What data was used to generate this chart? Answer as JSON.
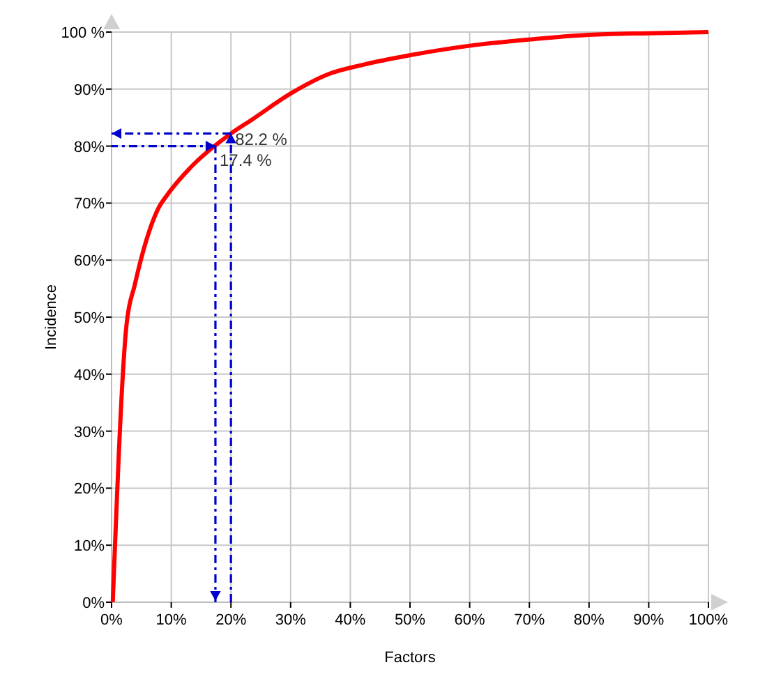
{
  "chart_data": {
    "type": "line",
    "xlabel": "Factors",
    "ylabel": "Incidence",
    "grid": true,
    "x": [
      0.2,
      2.5,
      3.9,
      5.2,
      7.8,
      9.3,
      13.1,
      20,
      23.6,
      30.3,
      36.3,
      42.3,
      49.8,
      60,
      70.1,
      79.9,
      90,
      100
    ],
    "series": [
      {
        "color": "#ff0000",
        "values": [
          0,
          48.6,
          55.7,
          61.2,
          69,
          71.4,
          76.1,
          82.2,
          84.7,
          89.4,
          92.6,
          94.3,
          95.9,
          97.6,
          98.7,
          99.5,
          99.8,
          100
        ]
      }
    ],
    "xlim": [
      0,
      100
    ],
    "ylim": [
      0,
      100
    ],
    "xticks": [
      {
        "value": 0,
        "label": "0%"
      },
      {
        "value": 10,
        "label": "10%"
      },
      {
        "value": 20,
        "label": "20%"
      },
      {
        "value": 30,
        "label": "30%"
      },
      {
        "value": 40,
        "label": "40%"
      },
      {
        "value": 50,
        "label": "50%"
      },
      {
        "value": 60,
        "label": "60%"
      },
      {
        "value": 70,
        "label": "70%"
      },
      {
        "value": 80,
        "label": "80%"
      },
      {
        "value": 90,
        "label": "90%"
      },
      {
        "value": 100,
        "label": "100%"
      }
    ],
    "yticks": [
      {
        "value": 0,
        "label": "0%"
      },
      {
        "value": 10,
        "label": "10%"
      },
      {
        "value": 20,
        "label": "20%"
      },
      {
        "value": 30,
        "label": "30%"
      },
      {
        "value": 40,
        "label": "40%"
      },
      {
        "value": 50,
        "label": "50%"
      },
      {
        "value": 60,
        "label": "60%"
      },
      {
        "value": 70,
        "label": "70%"
      },
      {
        "value": 80,
        "label": "80%"
      },
      {
        "value": 90,
        "label": "90%"
      },
      {
        "value": 100,
        "label": "100 %"
      }
    ],
    "annotations": [
      {
        "text": "82.2 %",
        "x": 20,
        "y": 82.2
      },
      {
        "text": "17.4 %",
        "x": 17.4,
        "y": 80
      }
    ]
  }
}
